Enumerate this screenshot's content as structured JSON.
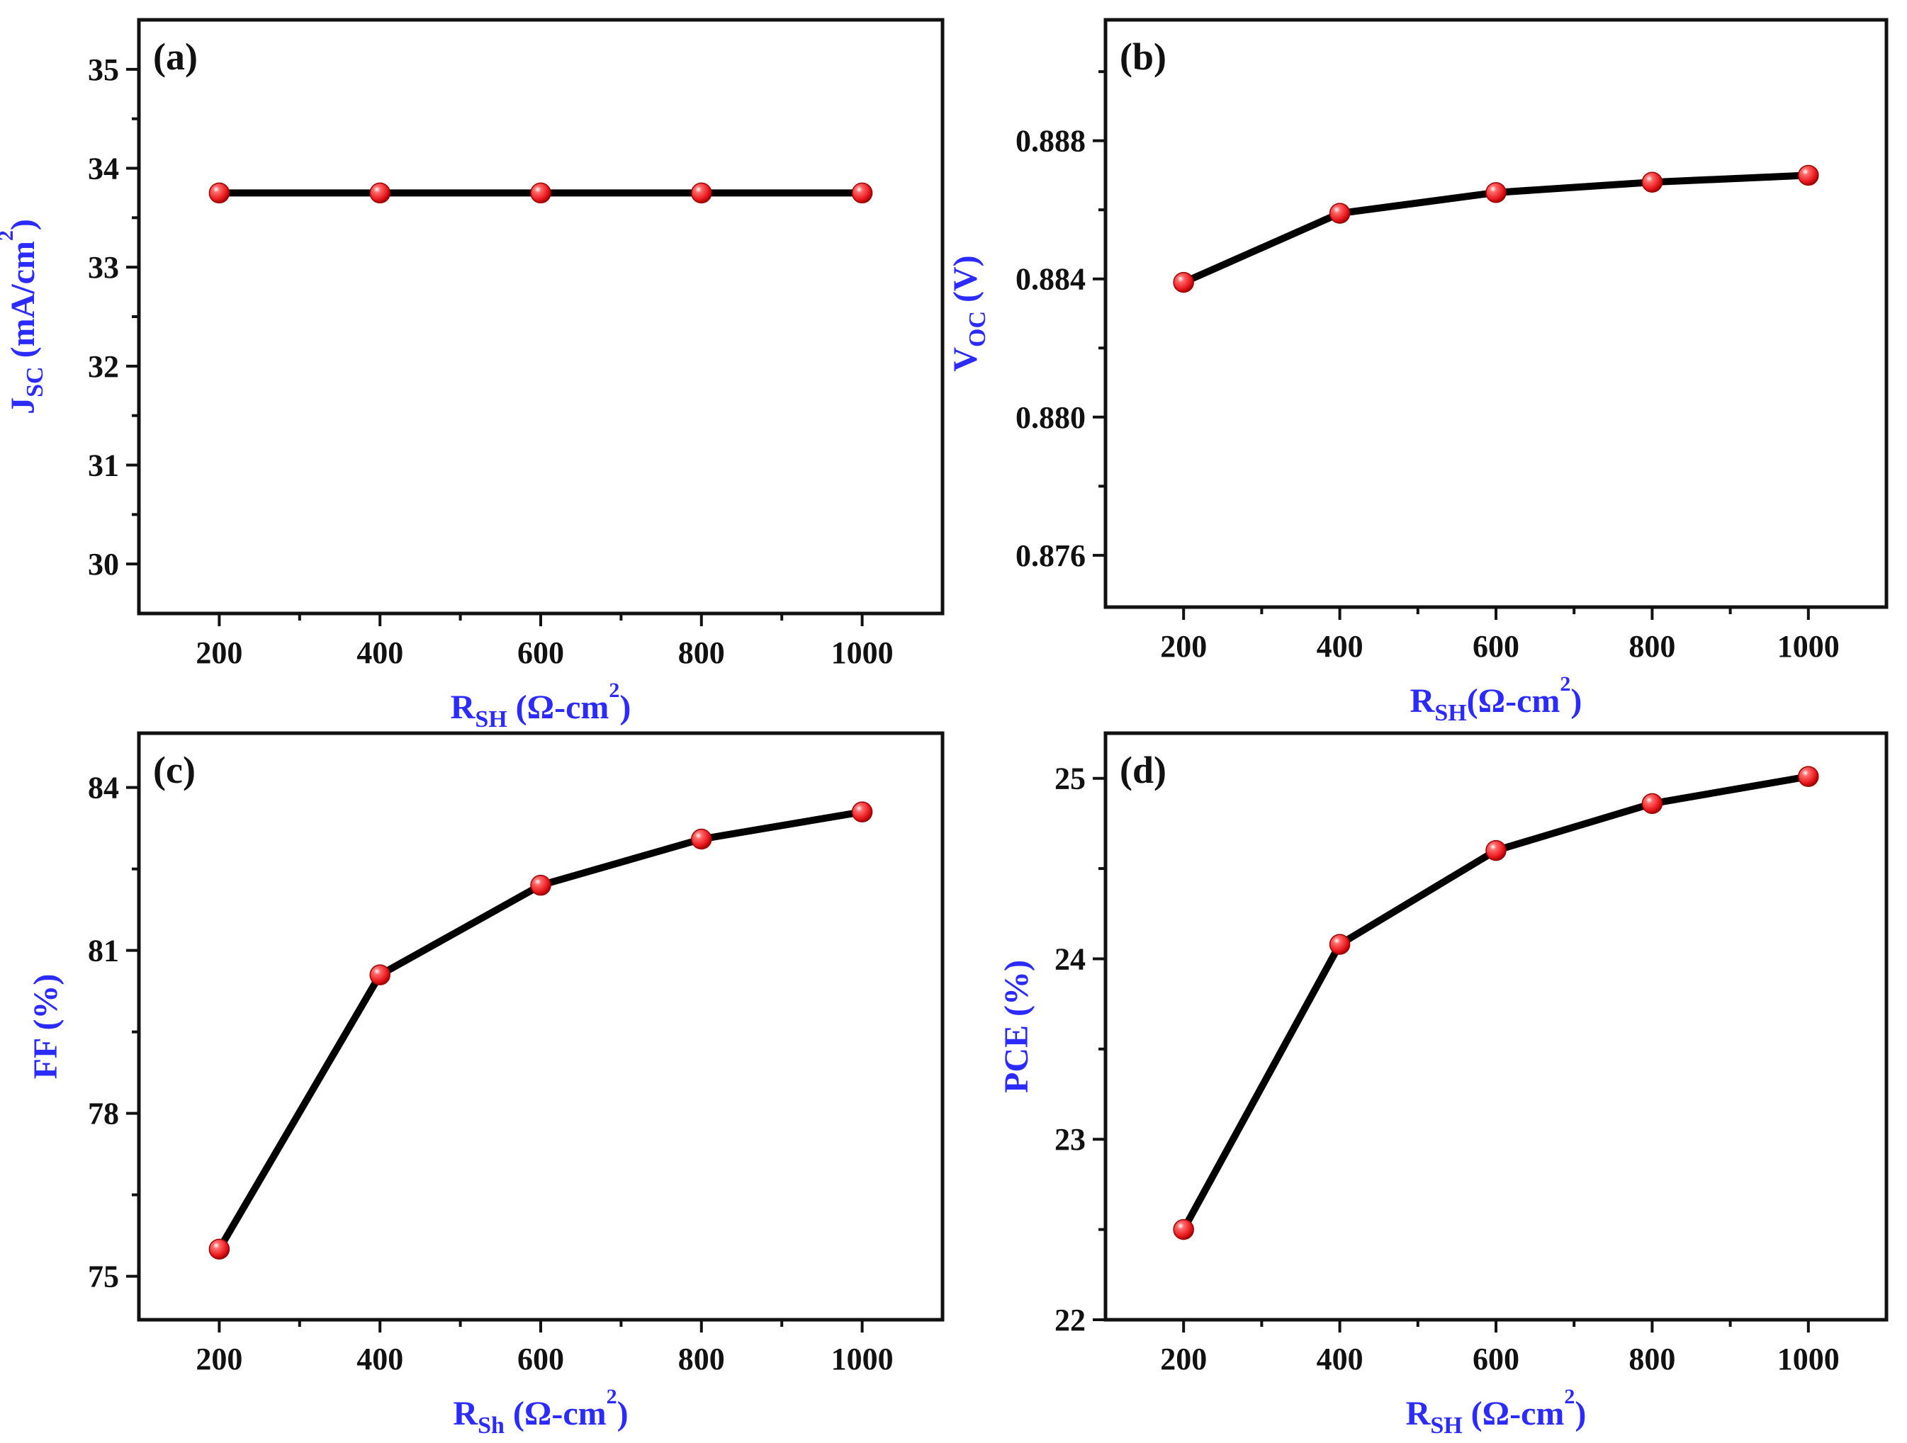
{
  "chart_data": [
    {
      "panel": "(a)",
      "type": "line",
      "x": [
        200,
        400,
        600,
        800,
        1000
      ],
      "values": [
        33.75,
        33.75,
        33.75,
        33.75,
        33.75
      ],
      "xlabel": {
        "main": "R",
        "sub": "SH",
        "rest": " (Ω-cm",
        "sup": "2",
        "close": ")"
      },
      "ylabel": {
        "main": "J",
        "sub": "SC",
        "rest": " (mA/cm",
        "sup": "2",
        "close": ")"
      },
      "xlim": [
        100,
        1100
      ],
      "ylim": [
        29.5,
        35.5
      ],
      "xticks": [
        200,
        400,
        600,
        800,
        1000
      ],
      "yticks": [
        30,
        31,
        32,
        33,
        34,
        35
      ],
      "ydecimals": 0
    },
    {
      "panel": "(b)",
      "type": "line",
      "x": [
        200,
        400,
        600,
        800,
        1000
      ],
      "values": [
        0.8839,
        0.8859,
        0.8865,
        0.8868,
        0.887
      ],
      "xlabel": {
        "main": "R",
        "sub": "SH",
        "rest": "(Ω-cm",
        "sup": "2",
        "close": ")"
      },
      "ylabel": {
        "main": "V",
        "sub": "OC",
        "rest": " (V)",
        "sup": "",
        "close": ""
      },
      "xlim": [
        100,
        1100
      ],
      "ylim": [
        0.8745,
        0.8915
      ],
      "xticks": [
        200,
        400,
        600,
        800,
        1000
      ],
      "yticks": [
        0.876,
        0.88,
        0.884,
        0.888
      ],
      "ydecimals": 3
    },
    {
      "panel": "(c)",
      "type": "line",
      "x": [
        200,
        400,
        600,
        800,
        1000
      ],
      "values": [
        75.5,
        80.55,
        82.2,
        83.05,
        83.55
      ],
      "xlabel": {
        "main": "R",
        "sub": "Sh",
        "rest": " (Ω-cm",
        "sup": "2",
        "close": ")"
      },
      "ylabel": {
        "main": "FF (%)",
        "sub": "",
        "rest": "",
        "sup": "",
        "close": ""
      },
      "xlim": [
        100,
        1100
      ],
      "ylim": [
        74.2,
        85.0
      ],
      "xticks": [
        200,
        400,
        600,
        800,
        1000
      ],
      "yticks": [
        75,
        78,
        81,
        84
      ],
      "ydecimals": 0
    },
    {
      "panel": "(d)",
      "type": "line",
      "x": [
        200,
        400,
        600,
        800,
        1000
      ],
      "values": [
        22.5,
        24.08,
        24.6,
        24.86,
        25.01
      ],
      "xlabel": {
        "main": "R",
        "sub": "SH",
        "rest": " (Ω-cm",
        "sup": "2",
        "close": ")"
      },
      "ylabel": {
        "main": "PCE (%)",
        "sub": "",
        "rest": "",
        "sup": "",
        "close": ""
      },
      "xlim": [
        100,
        1100
      ],
      "ylim": [
        22.0,
        25.25
      ],
      "xticks": [
        200,
        400,
        600,
        800,
        1000
      ],
      "yticks": [
        22,
        23,
        24,
        25
      ],
      "ydecimals": 0
    }
  ],
  "colors": {
    "axis_label": "#2b2bff",
    "line": "#000000",
    "marker": "#e8151b",
    "frame": "#111111"
  }
}
